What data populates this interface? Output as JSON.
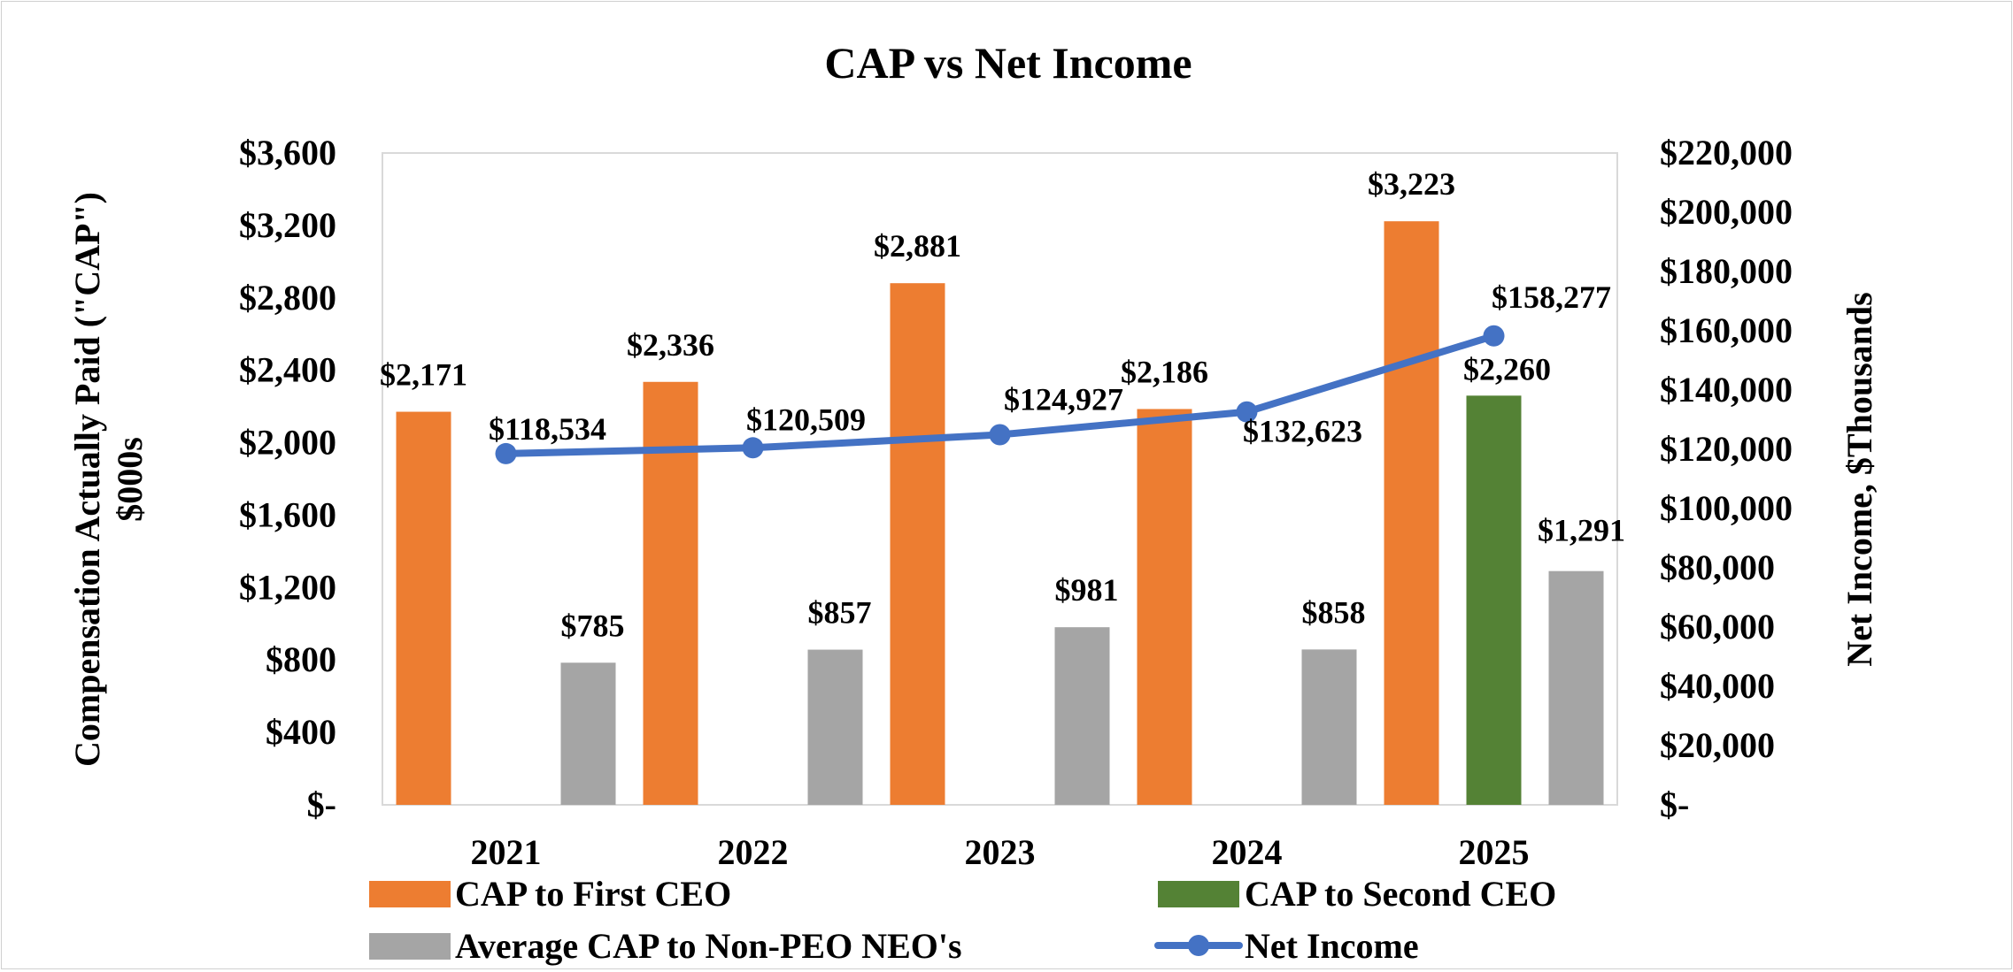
{
  "chart_data": {
    "type": "bar",
    "title": "CAP vs Net Income",
    "categories": [
      "2021",
      "2022",
      "2023",
      "2024",
      "2025"
    ],
    "ylabel_left_line1": "Compensation Actually Paid (\"CAP\")",
    "ylabel_left_line2": "$000s",
    "ylabel_right": "Net Income, $Thousands",
    "ylim_left": [
      0,
      3600
    ],
    "ylim_right": [
      0,
      220000
    ],
    "left_ticks": [
      "$-",
      "$400",
      "$800",
      "$1,200",
      "$1,600",
      "$2,000",
      "$2,400",
      "$2,800",
      "$3,200",
      "$3,600"
    ],
    "right_ticks": [
      "$-",
      "$20,000",
      "$40,000",
      "$60,000",
      "$80,000",
      "$100,000",
      "$120,000",
      "$140,000",
      "$160,000",
      "$180,000",
      "$200,000",
      "$220,000"
    ],
    "series": [
      {
        "name": "CAP to First CEO",
        "type": "bar",
        "axis": "left",
        "color": "#ED7D31",
        "values": [
          2171,
          2336,
          2881,
          2186,
          3223
        ],
        "labels": [
          "$2,171",
          "$2,336",
          "$2,881",
          "$2,186",
          "$3,223"
        ]
      },
      {
        "name": "CAP to Second CEO",
        "type": "bar",
        "axis": "left",
        "color": "#548235",
        "values": [
          null,
          null,
          null,
          null,
          2260
        ],
        "labels": [
          "",
          "",
          "",
          "",
          "$2,260"
        ]
      },
      {
        "name": "Average CAP to Non-PEO NEO's",
        "type": "bar",
        "axis": "left",
        "color": "#A5A5A5",
        "values": [
          785,
          857,
          981,
          858,
          1291
        ],
        "labels": [
          "$785",
          "$857",
          "$981",
          "$858",
          "$1,291"
        ]
      },
      {
        "name": "Net Income",
        "type": "line",
        "axis": "right",
        "color": "#4472C4",
        "values": [
          118534,
          120509,
          124927,
          132623,
          158277
        ],
        "labels": [
          "$118,534",
          "$120,509",
          "$124,927",
          "$132,623",
          "$158,277"
        ]
      }
    ],
    "legend_position": "bottom"
  }
}
